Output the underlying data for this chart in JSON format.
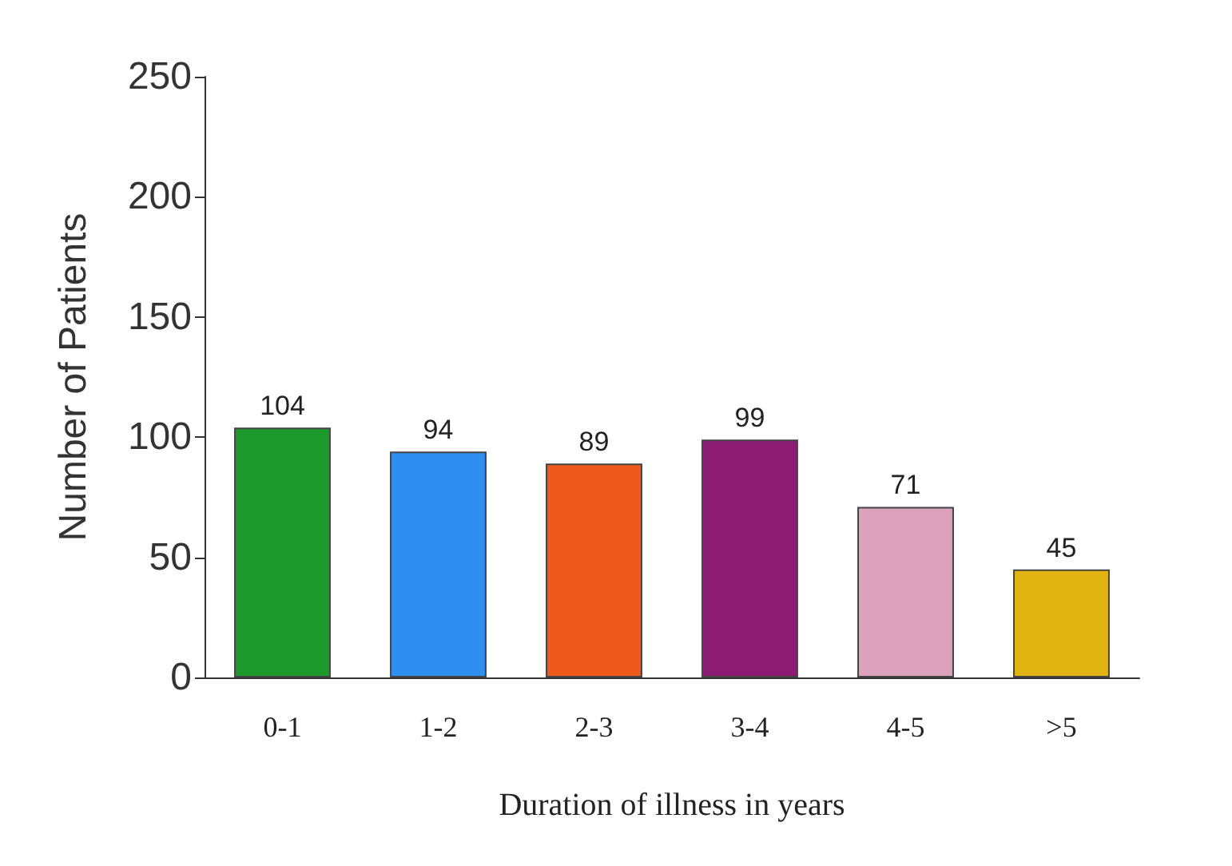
{
  "chart_data": {
    "type": "bar",
    "xlabel": "Duration of illness in years",
    "ylabel": "Number of Patients",
    "categories": [
      "0-1",
      "1-2",
      "2-3",
      "3-4",
      "4-5",
      ">5"
    ],
    "values": [
      104,
      94,
      89,
      99,
      71,
      45
    ],
    "colors": [
      "#1e9a2c",
      "#2e8ff0",
      "#ee5a1c",
      "#8c1c72",
      "#dca2bc",
      "#e2b412"
    ],
    "ylim": [
      0,
      250
    ],
    "yticks": [
      0,
      50,
      100,
      150,
      200,
      250
    ],
    "data_labels": true,
    "grid": false
  }
}
